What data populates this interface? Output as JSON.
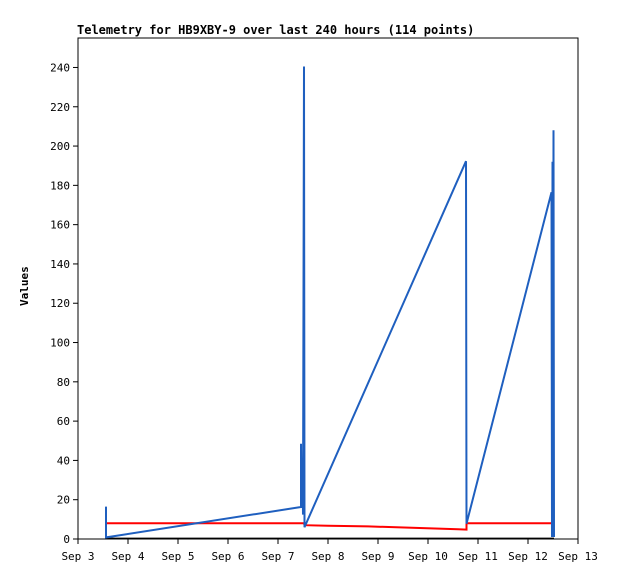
{
  "chart_data": {
    "type": "line",
    "title": "Telemetry for HB9XBY-9 over last 240 hours (114 points)",
    "xlabel": "",
    "ylabel": "Values",
    "x_ticks": [
      "Sep 3",
      "Sep 4",
      "Sep 5",
      "Sep 6",
      "Sep 7",
      "Sep 8",
      "Sep 9",
      "Sep 10",
      "Sep 11",
      "Sep 12",
      "Sep 13"
    ],
    "x_range_days": [
      3,
      13
    ],
    "y_ticks": [
      0,
      20,
      40,
      60,
      80,
      100,
      120,
      140,
      160,
      180,
      200,
      220,
      240
    ],
    "ylim": [
      0,
      255
    ],
    "grid": false,
    "colors": {
      "series_blue": "#1f5fbf",
      "series_red": "#ff0000",
      "series_black": "#000000"
    },
    "series": [
      {
        "color": "#1f5fbf",
        "points": [
          [
            3.56,
            16.5
          ],
          [
            3.56,
            0.8
          ],
          [
            7.46,
            16.3
          ],
          [
            7.46,
            48.5
          ],
          [
            7.47,
            16.3
          ],
          [
            7.49,
            36.2
          ],
          [
            7.5,
            12.4
          ],
          [
            7.52,
            240.5
          ],
          [
            7.53,
            6.0
          ],
          [
            10.76,
            192.3
          ],
          [
            10.77,
            7.8
          ],
          [
            12.47,
            176.5
          ],
          [
            12.48,
            1.0
          ],
          [
            12.49,
            192.0
          ],
          [
            12.5,
            1.0
          ],
          [
            12.51,
            208.0
          ],
          [
            12.52,
            1.0
          ]
        ]
      },
      {
        "color": "#ff0000",
        "points": [
          [
            3.56,
            8.0
          ],
          [
            7.52,
            8.0
          ],
          [
            7.53,
            7.0
          ],
          [
            8.0,
            6.7
          ],
          [
            8.8,
            6.4
          ],
          [
            9.6,
            5.8
          ],
          [
            10.6,
            5.0
          ],
          [
            10.77,
            4.8
          ],
          [
            10.77,
            8.0
          ],
          [
            12.52,
            8.0
          ]
        ]
      },
      {
        "color": "#000000",
        "points": [
          [
            3.56,
            0.4
          ],
          [
            12.52,
            0.4
          ]
        ]
      }
    ]
  }
}
